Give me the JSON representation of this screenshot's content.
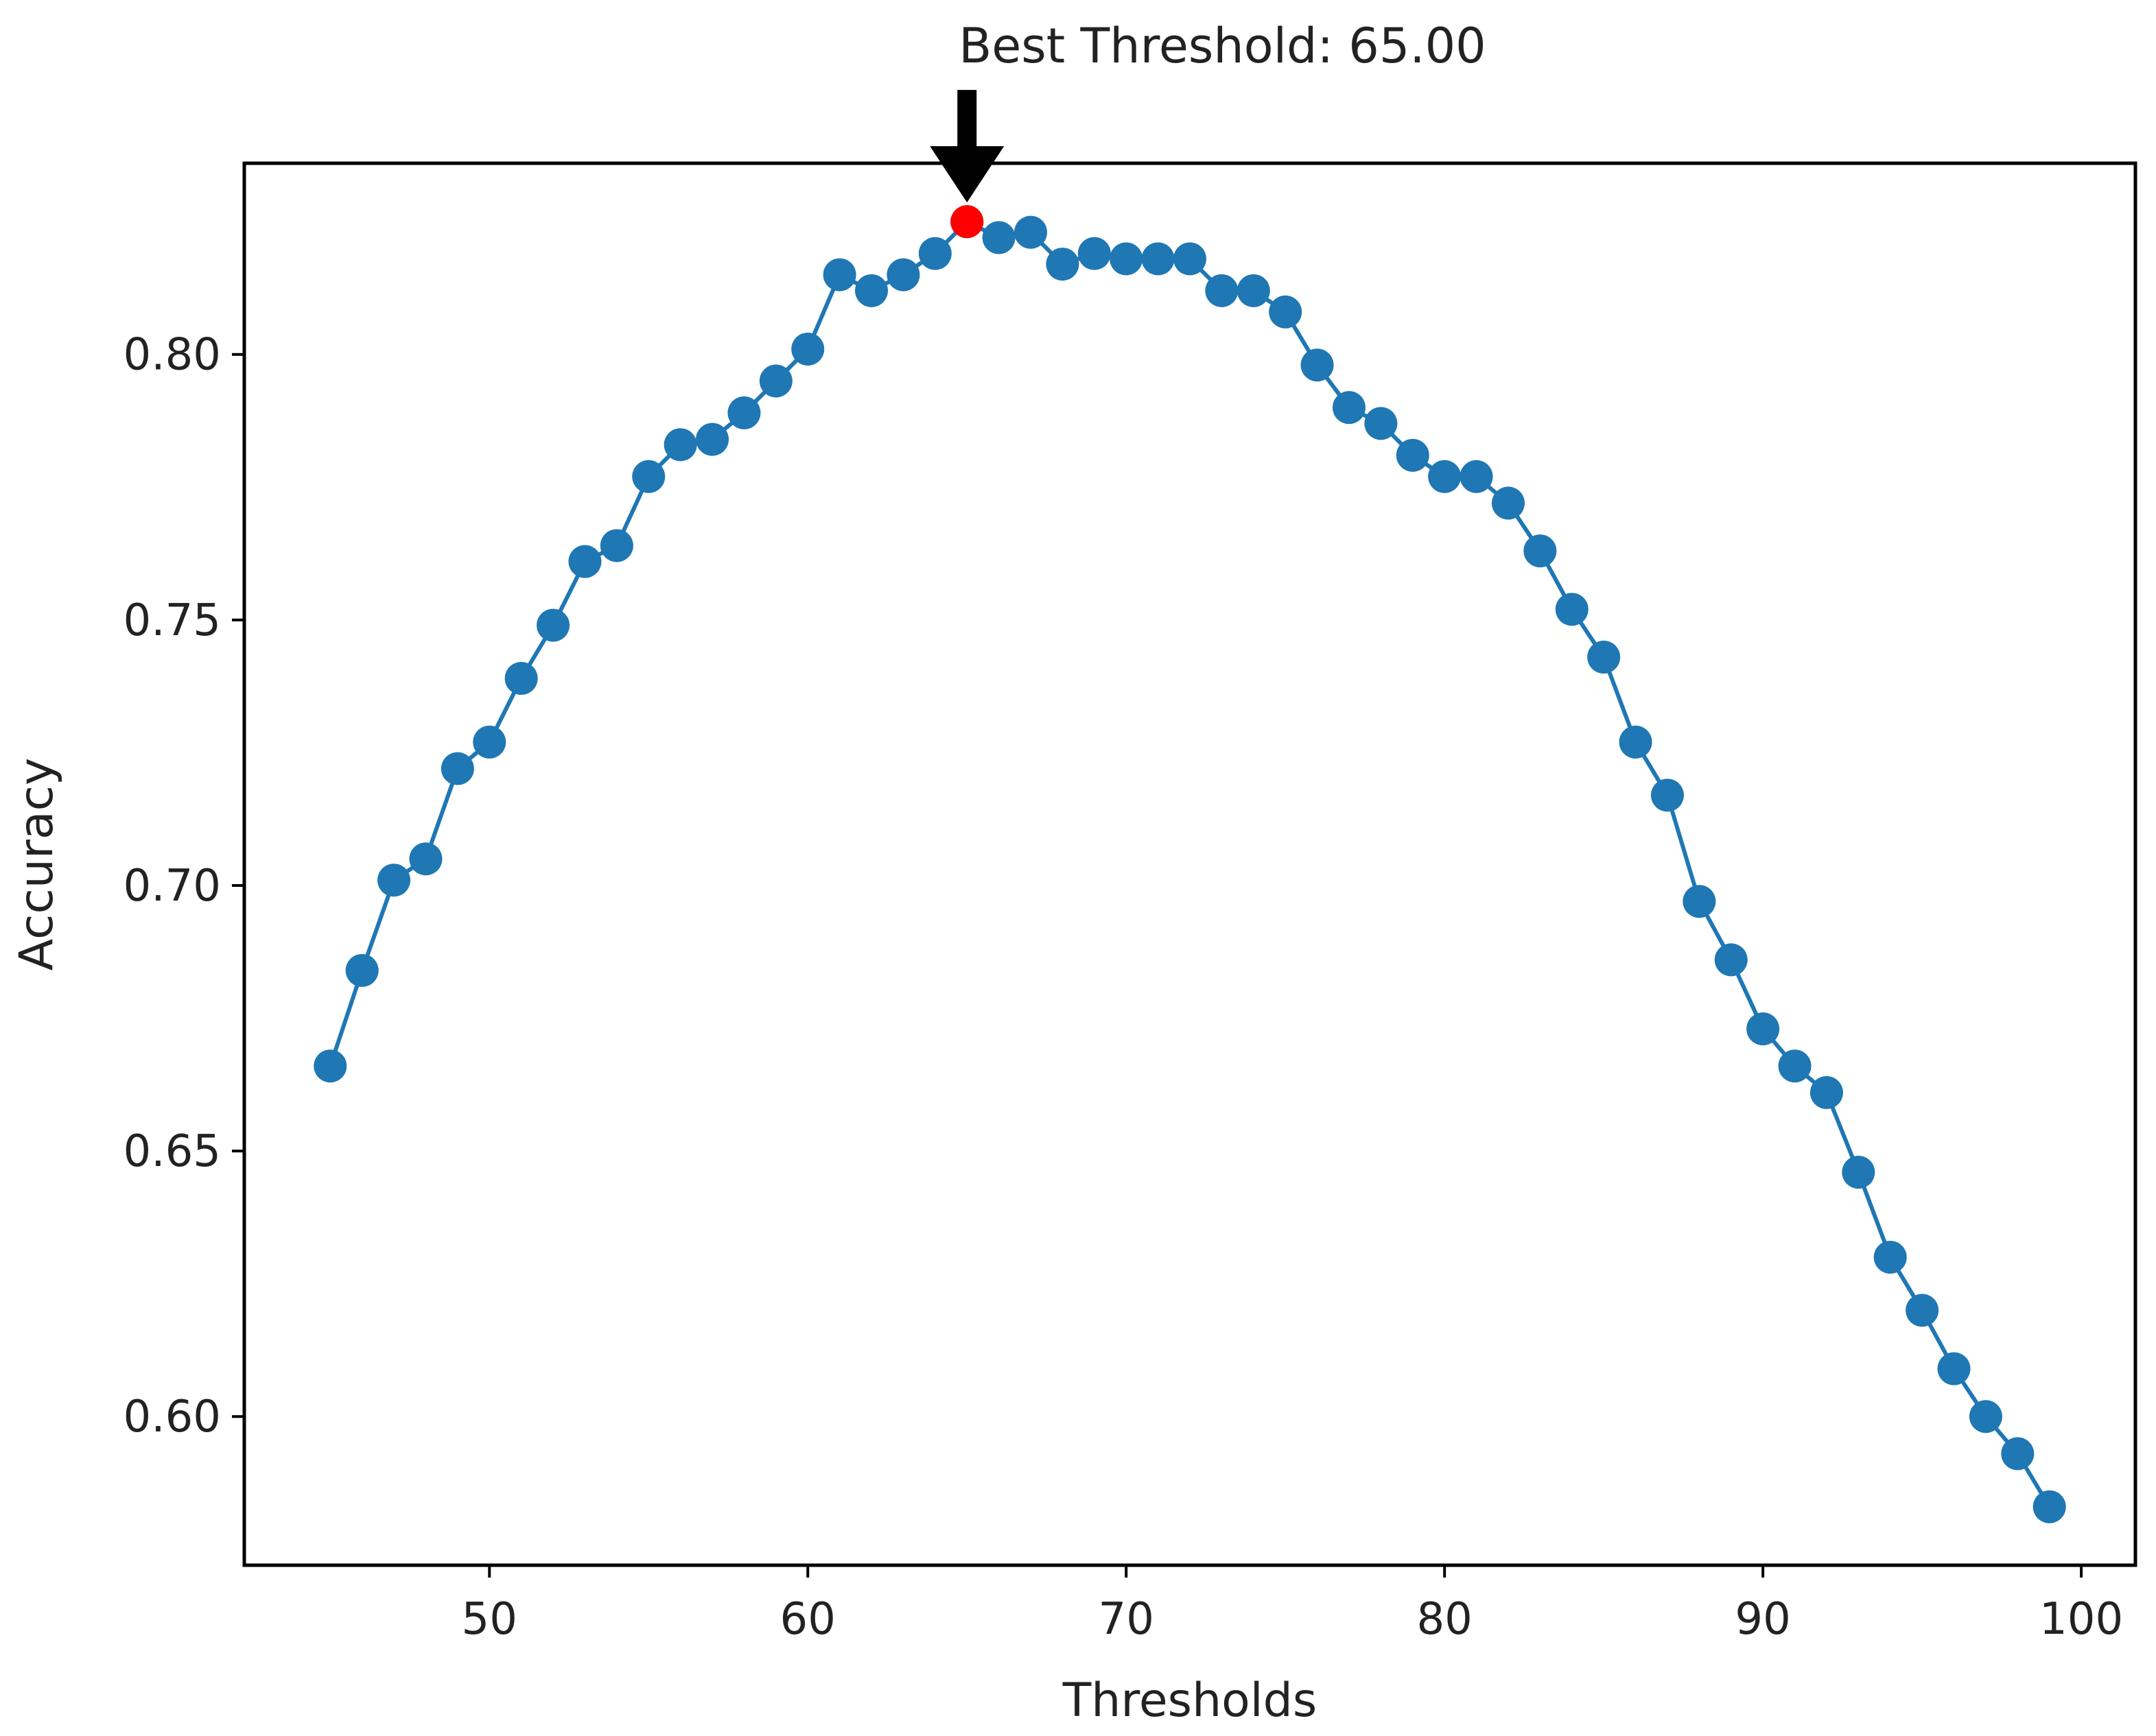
{
  "chart_data": {
    "type": "line",
    "xlabel": "Thresholds",
    "ylabel": "Accuracy",
    "xlim": [
      42.3,
      101.7
    ],
    "ylim": [
      0.572,
      0.836
    ],
    "xticks": [
      50,
      60,
      70,
      80,
      90,
      100
    ],
    "yticks": [
      0.6,
      0.65,
      0.7,
      0.75,
      0.8
    ],
    "grid": false,
    "line_color": "#1f77b4",
    "highlight_color": "#ff0000",
    "series": [
      {
        "x": [
          45,
          46,
          47,
          48,
          49,
          50,
          51,
          52,
          53,
          54,
          55,
          56,
          57,
          58,
          59,
          60,
          61,
          62,
          63,
          64,
          65,
          66,
          67,
          68,
          69,
          70,
          71,
          72,
          73,
          74,
          75,
          76,
          77,
          78,
          79,
          80,
          81,
          82,
          83,
          84,
          85,
          86,
          87,
          88,
          89,
          90,
          91,
          92,
          93,
          94,
          95,
          96,
          97,
          98,
          99
        ],
        "y": [
          0.666,
          0.684,
          0.701,
          0.705,
          0.722,
          0.727,
          0.739,
          0.749,
          0.761,
          0.764,
          0.777,
          0.783,
          0.784,
          0.789,
          0.795,
          0.801,
          0.815,
          0.812,
          0.815,
          0.819,
          0.825,
          0.822,
          0.823,
          0.817,
          0.819,
          0.818,
          0.818,
          0.818,
          0.812,
          0.812,
          0.808,
          0.798,
          0.79,
          0.787,
          0.781,
          0.777,
          0.777,
          0.772,
          0.763,
          0.752,
          0.743,
          0.727,
          0.717,
          0.697,
          0.686,
          0.673,
          0.666,
          0.661,
          0.646,
          0.63,
          0.62,
          0.609,
          0.6,
          0.593,
          0.583
        ]
      }
    ],
    "best": {
      "x": 65,
      "y": 0.825
    },
    "annotation": {
      "text": "Best Threshold: 65.00"
    }
  }
}
